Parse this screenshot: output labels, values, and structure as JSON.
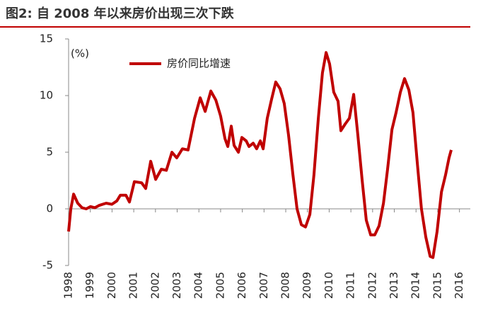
{
  "chart_data": {
    "type": "line",
    "title": "图2:   自 2008 年以来房价出现三次下跌",
    "y_label": "(%)",
    "series": [
      {
        "name": "房价同比增速",
        "color": "#c00000",
        "x": [
          1998.0,
          1998.1,
          1998.23,
          1998.42,
          1998.62,
          1998.81,
          1999.01,
          1999.21,
          1999.4,
          1999.73,
          1999.99,
          2000.22,
          2000.38,
          2000.64,
          2000.8,
          2001.03,
          2001.36,
          2001.55,
          2001.78,
          2002.01,
          2002.27,
          2002.5,
          2002.76,
          2002.98,
          2003.24,
          2003.5,
          2003.8,
          2004.06,
          2004.29,
          2004.55,
          2004.78,
          2005.0,
          2005.2,
          2005.33,
          2005.49,
          2005.62,
          2005.82,
          2005.98,
          2006.18,
          2006.31,
          2006.5,
          2006.66,
          2006.83,
          2006.96,
          2007.15,
          2007.35,
          2007.54,
          2007.74,
          2007.93,
          2008.13,
          2008.33,
          2008.52,
          2008.72,
          2008.91,
          2009.11,
          2009.3,
          2009.5,
          2009.69,
          2009.86,
          2010.02,
          2010.21,
          2010.41,
          2010.54,
          2010.74,
          2010.93,
          2011.13,
          2011.32,
          2011.52,
          2011.71,
          2011.91,
          2012.1,
          2012.3,
          2012.5,
          2012.69,
          2012.89,
          2013.08,
          2013.28,
          2013.47,
          2013.67,
          2013.86,
          2014.06,
          2014.25,
          2014.45,
          2014.65,
          2014.78,
          2014.97,
          2015.17,
          2015.36,
          2015.52,
          2015.62
        ],
        "values": [
          -2.0,
          0,
          1.3,
          0.5,
          0.1,
          0,
          0.2,
          0.1,
          0.3,
          0.5,
          0.4,
          0.7,
          1.2,
          1.2,
          0.6,
          2.4,
          2.3,
          1.8,
          4.2,
          2.6,
          3.5,
          3.4,
          5.0,
          4.5,
          5.3,
          5.2,
          8.0,
          9.8,
          8.6,
          10.4,
          9.6,
          8.2,
          6.2,
          5.5,
          7.3,
          5.6,
          5.0,
          6.3,
          6.0,
          5.5,
          5.8,
          5.3,
          6.0,
          5.3,
          8.0,
          9.7,
          11.2,
          10.6,
          9.3,
          6.5,
          3.0,
          0.0,
          -1.4,
          -1.6,
          -0.5,
          3.0,
          8.0,
          12.0,
          13.8,
          12.8,
          10.3,
          9.5,
          6.9,
          7.5,
          8.0,
          10.1,
          6.5,
          2.5,
          -1.0,
          -2.3,
          -2.3,
          -1.5,
          0.5,
          3.5,
          7.0,
          8.5,
          10.3,
          11.5,
          10.5,
          8.5,
          4.0,
          0.0,
          -2.5,
          -4.2,
          -4.3,
          -2.0,
          1.5,
          3.0,
          4.5,
          5.2
        ]
      }
    ],
    "xlim": [
      1998,
      2016.5
    ],
    "xticks": [
      1998,
      1999,
      2000,
      2001,
      2002,
      2003,
      2004,
      2005,
      2006,
      2007,
      2008,
      2009,
      2010,
      2011,
      2012,
      2013,
      2014,
      2015,
      2016
    ],
    "ylim": [
      -5,
      15
    ],
    "yticks": [
      -5,
      0,
      5,
      10,
      15
    ],
    "legend": "top-left"
  }
}
